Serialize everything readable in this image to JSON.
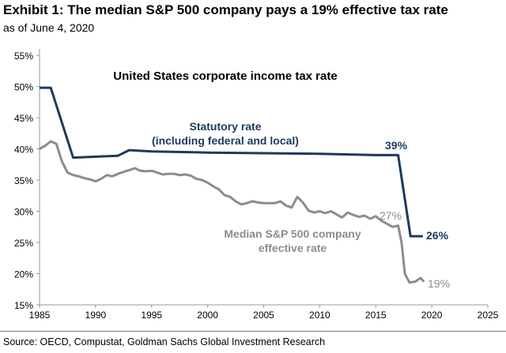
{
  "header": {
    "title": "Exhibit 1: The median S&P 500 company pays a 19% effective tax rate",
    "subtitle": "as of June 4, 2020"
  },
  "source": "Source: OECD, Compustat, Goldman Sachs Global Investment Research",
  "chart_data": {
    "type": "line",
    "title": "United States corporate income tax rate",
    "xlim": [
      1985,
      2025
    ],
    "ylim": [
      15,
      55
    ],
    "xticks": [
      "1985",
      "1990",
      "1995",
      "2000",
      "2005",
      "2010",
      "2015",
      "2020",
      "2025"
    ],
    "yticks": [
      "15%",
      "20%",
      "25%",
      "30%",
      "35%",
      "40%",
      "45%",
      "50%",
      "55%"
    ],
    "grid": false,
    "series": [
      {
        "name": "Statutory rate (including federal and local)",
        "color": "#1b3a5c",
        "x": [
          1985,
          1986,
          1988,
          1992,
          1993,
          1995,
          2000,
          2005,
          2010,
          2015,
          2017,
          2018.1,
          2019.2
        ],
        "y": [
          49.8,
          49.8,
          38.6,
          38.9,
          39.8,
          39.6,
          39.4,
          39.3,
          39.2,
          39.0,
          39.0,
          26.0,
          26.0
        ],
        "labels": [
          {
            "text": "39%"
          },
          {
            "text": "26%"
          }
        ]
      },
      {
        "name": "Median S&P 500 company effective rate",
        "color": "#8c8c8c",
        "x": [
          1985,
          1985.5,
          1986,
          1986.5,
          1987,
          1987.5,
          1988,
          1988.5,
          1989,
          1989.5,
          1990,
          1990.5,
          1991,
          1991.5,
          1992,
          1992.5,
          1993,
          1993.5,
          1994,
          1994.5,
          1995,
          1995.5,
          1996,
          1996.5,
          1997,
          1997.5,
          1998,
          1998.5,
          1999,
          1999.5,
          2000,
          2000.5,
          2001,
          2001.5,
          2002,
          2002.5,
          2003,
          2003.5,
          2004,
          2004.5,
          2005,
          2005.5,
          2006,
          2006.5,
          2007,
          2007.5,
          2008,
          2008.5,
          2009,
          2009.5,
          2010,
          2010.5,
          2011,
          2011.5,
          2012,
          2012.5,
          2013,
          2013.5,
          2014,
          2014.5,
          2015,
          2015.5,
          2016,
          2016.5,
          2017,
          2017.3,
          2017.6,
          2018,
          2018.5,
          2019,
          2019.3
        ],
        "y": [
          40.0,
          40.5,
          41.2,
          40.8,
          38.0,
          36.2,
          35.8,
          35.6,
          35.3,
          35.1,
          34.8,
          35.2,
          35.8,
          35.6,
          36.0,
          36.3,
          36.6,
          36.9,
          36.5,
          36.4,
          36.5,
          36.2,
          35.9,
          36.0,
          36.0,
          35.8,
          35.9,
          35.7,
          35.2,
          35.0,
          34.6,
          34.0,
          33.5,
          32.6,
          32.3,
          31.6,
          31.1,
          31.3,
          31.6,
          31.4,
          31.3,
          31.3,
          31.3,
          31.6,
          30.9,
          30.6,
          32.3,
          31.4,
          30.1,
          29.8,
          30.0,
          29.7,
          30.0,
          29.5,
          29.0,
          29.8,
          29.4,
          29.1,
          29.3,
          28.8,
          29.2,
          28.5,
          28.0,
          27.5,
          27.7,
          25.0,
          20.0,
          18.6,
          18.7,
          19.3,
          18.7
        ],
        "labels": [
          {
            "text": "27%"
          },
          {
            "text": "19%"
          }
        ]
      }
    ]
  }
}
